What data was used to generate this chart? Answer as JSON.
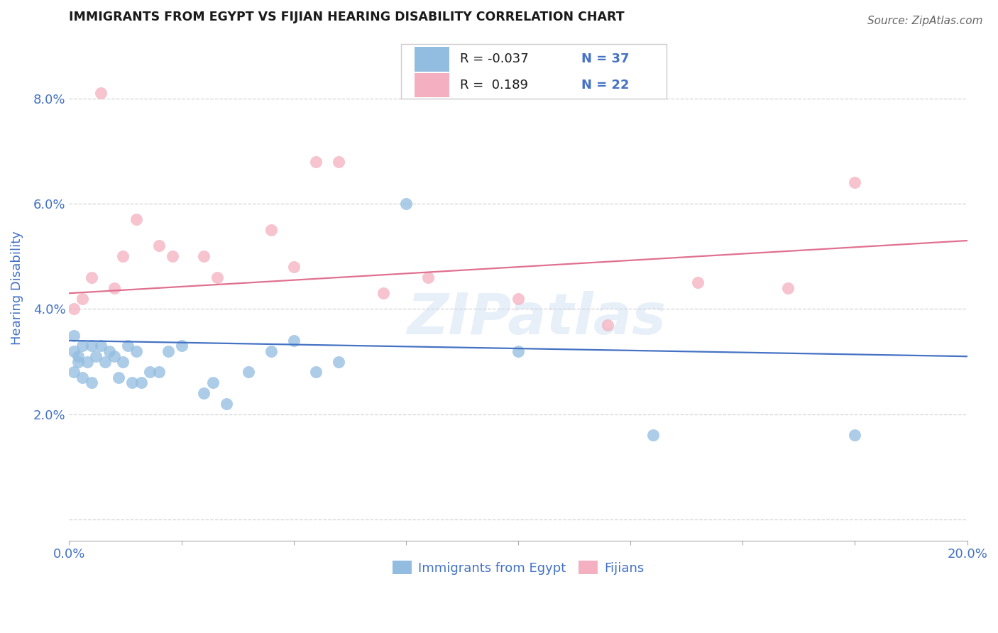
{
  "title": "IMMIGRANTS FROM EGYPT VS FIJIAN HEARING DISABILITY CORRELATION CHART",
  "source": "Source: ZipAtlas.com",
  "ylabel_label": "Hearing Disability",
  "xlim": [
    0.0,
    0.2
  ],
  "ylim": [
    -0.004,
    0.092
  ],
  "xticks": [
    0.0,
    0.025,
    0.05,
    0.075,
    0.1,
    0.125,
    0.15,
    0.175,
    0.2
  ],
  "xtick_labels": [
    "0.0%",
    "",
    "",
    "",
    "",
    "",
    "",
    "",
    "20.0%"
  ],
  "yticks": [
    0.0,
    0.02,
    0.04,
    0.06,
    0.08
  ],
  "ytick_labels": [
    "",
    "2.0%",
    "4.0%",
    "6.0%",
    "8.0%"
  ],
  "blue_R": "-0.037",
  "blue_N": "37",
  "pink_R": "0.189",
  "pink_N": "22",
  "blue_color": "#92bce0",
  "pink_color": "#f4afc0",
  "blue_line_color": "#4472c4",
  "pink_line_color": "#e07090",
  "watermark": "ZIPatlas",
  "legend_label_blue": "Immigrants from Egypt",
  "legend_label_pink": "Fijians",
  "blue_points_x": [
    0.001,
    0.001,
    0.001,
    0.002,
    0.002,
    0.003,
    0.003,
    0.004,
    0.005,
    0.005,
    0.006,
    0.007,
    0.008,
    0.009,
    0.01,
    0.011,
    0.012,
    0.013,
    0.014,
    0.015,
    0.016,
    0.018,
    0.02,
    0.022,
    0.025,
    0.03,
    0.032,
    0.035,
    0.04,
    0.045,
    0.05,
    0.055,
    0.06,
    0.075,
    0.1,
    0.13,
    0.175
  ],
  "blue_points_y": [
    0.035,
    0.032,
    0.028,
    0.031,
    0.03,
    0.033,
    0.027,
    0.03,
    0.033,
    0.026,
    0.031,
    0.033,
    0.03,
    0.032,
    0.031,
    0.027,
    0.03,
    0.033,
    0.026,
    0.032,
    0.026,
    0.028,
    0.028,
    0.032,
    0.033,
    0.024,
    0.026,
    0.022,
    0.028,
    0.032,
    0.034,
    0.028,
    0.03,
    0.06,
    0.032,
    0.016,
    0.016
  ],
  "pink_points_x": [
    0.001,
    0.003,
    0.005,
    0.007,
    0.01,
    0.012,
    0.015,
    0.02,
    0.023,
    0.03,
    0.033,
    0.045,
    0.05,
    0.055,
    0.06,
    0.07,
    0.08,
    0.1,
    0.12,
    0.14,
    0.16,
    0.175
  ],
  "pink_points_y": [
    0.04,
    0.042,
    0.046,
    0.081,
    0.044,
    0.05,
    0.057,
    0.052,
    0.05,
    0.05,
    0.046,
    0.055,
    0.048,
    0.068,
    0.068,
    0.043,
    0.046,
    0.042,
    0.037,
    0.045,
    0.044,
    0.064
  ],
  "blue_line_x": [
    0.0,
    0.2
  ],
  "blue_line_y": [
    0.034,
    0.031
  ],
  "pink_line_x": [
    0.0,
    0.2
  ],
  "pink_line_y": [
    0.043,
    0.053
  ],
  "background_color": "#ffffff",
  "grid_color": "#c8c8c8",
  "title_color": "#1a1a1a",
  "axis_label_color": "#4472c4",
  "tick_label_color": "#4472c4",
  "legend_R_color": "#1a1a1a",
  "legend_N_color": "#4472c4"
}
